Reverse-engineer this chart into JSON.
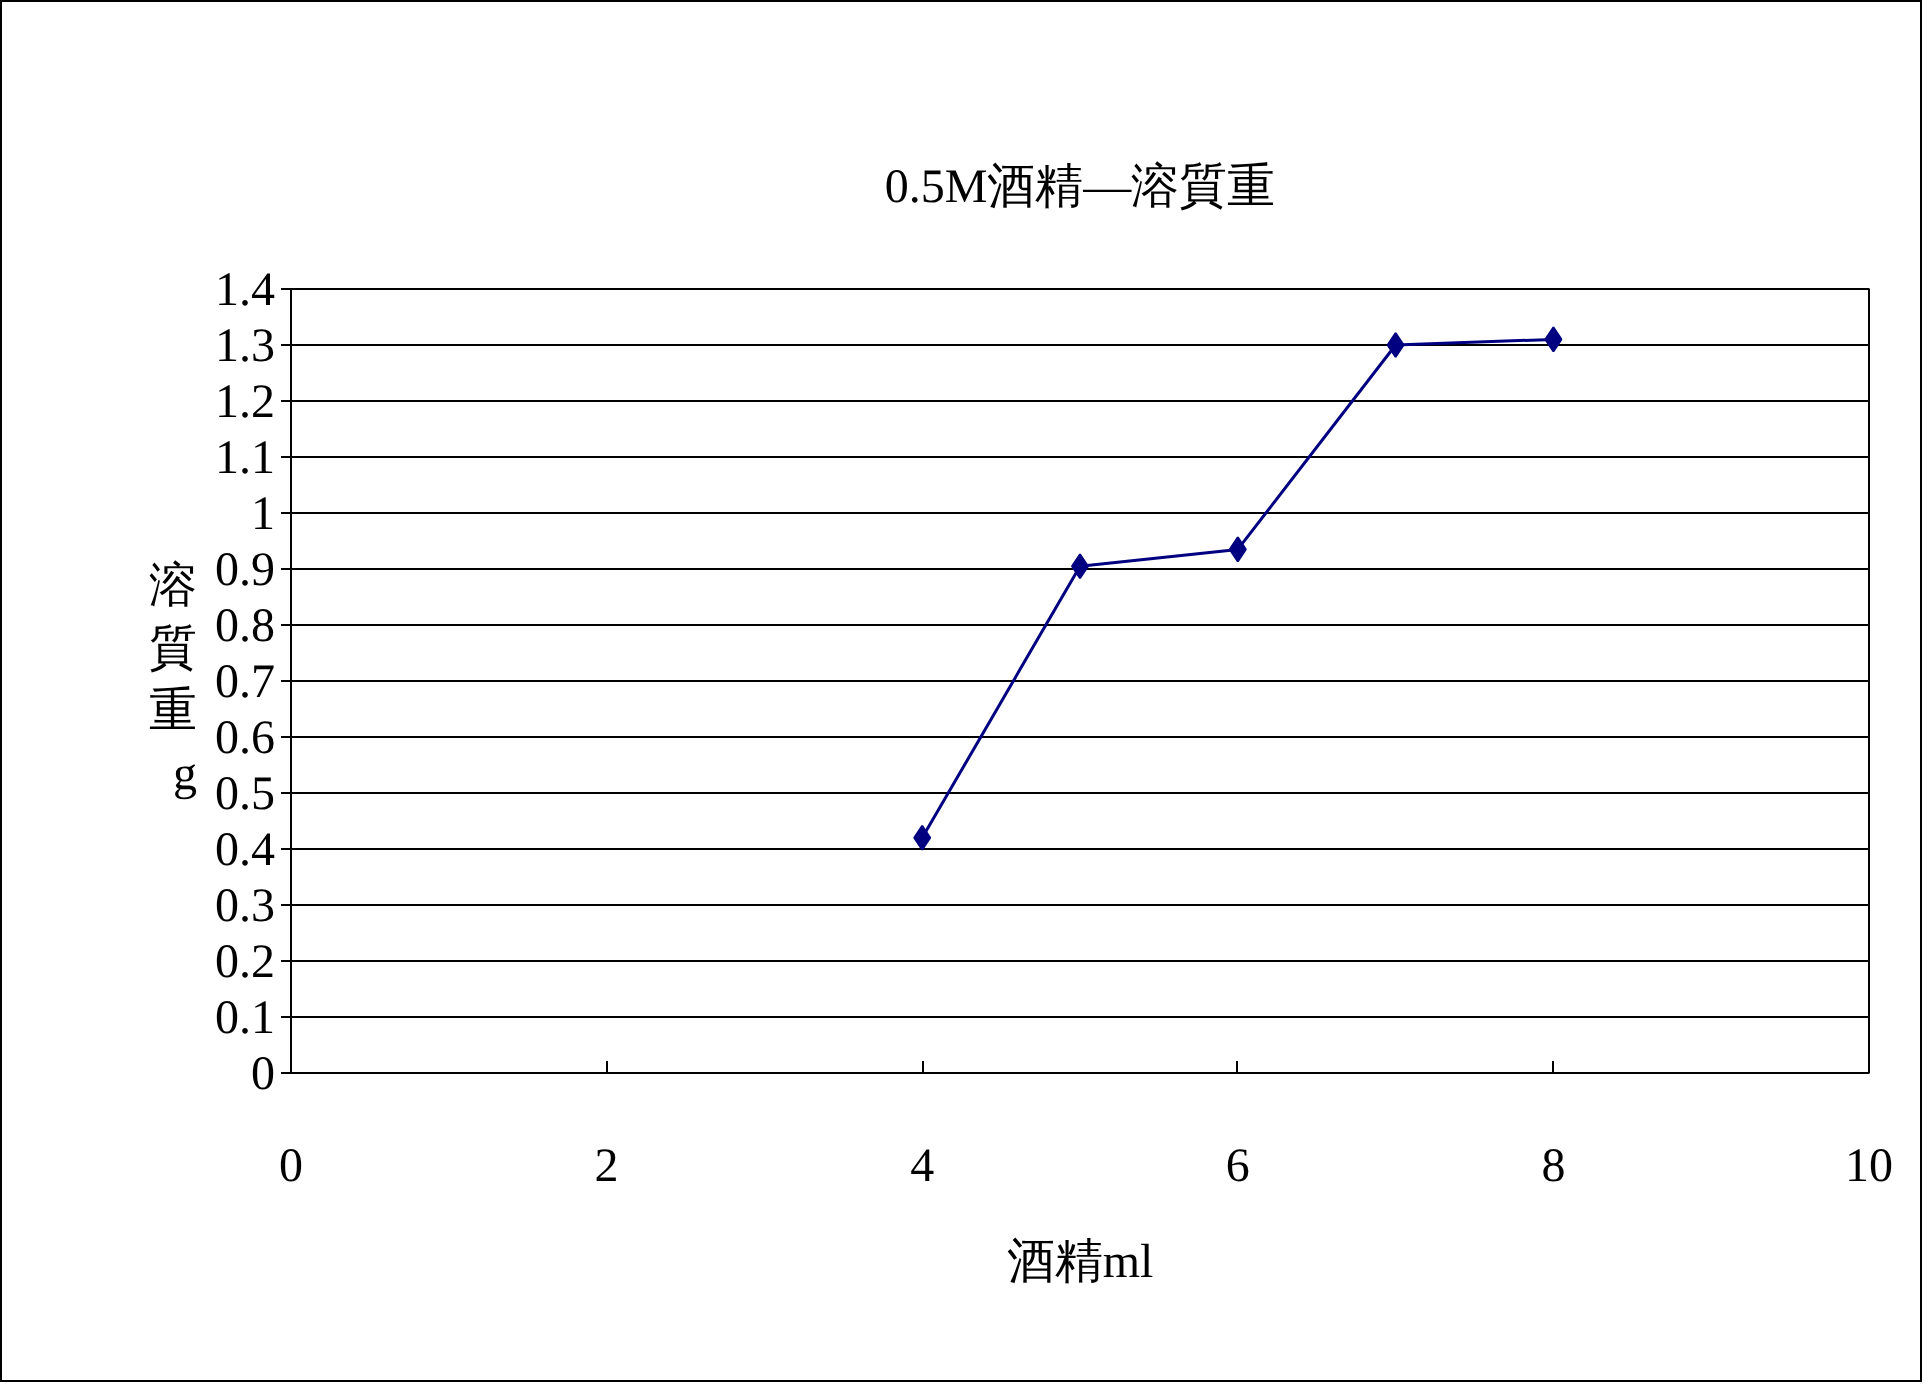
{
  "chart_data": {
    "type": "line",
    "title": "0.5M酒精—溶質重",
    "xlabel": "酒精ml",
    "ylabel": "溶質重g",
    "x": [
      4,
      5,
      6,
      7,
      8
    ],
    "series": [
      {
        "color": "#000080",
        "values": [
          0.42,
          0.905,
          0.935,
          1.3,
          1.31
        ]
      }
    ],
    "marker": "diamond",
    "line_style": "solid",
    "grid": "y",
    "xlim": [
      0,
      10
    ],
    "xticks": [
      0,
      2,
      4,
      6,
      8,
      10
    ],
    "ylim": [
      0,
      1.4
    ],
    "yticks": [
      0,
      0.1,
      0.2,
      0.3,
      0.4,
      0.5,
      0.6,
      0.7,
      0.8,
      0.9,
      1,
      1.1,
      1.2,
      1.3,
      1.4
    ]
  }
}
